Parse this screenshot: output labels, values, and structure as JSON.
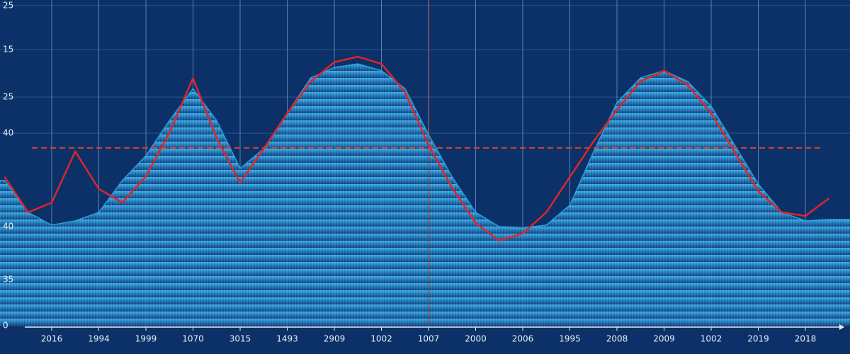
{
  "chart_data": {
    "type": "area-line",
    "categories": [
      null,
      null,
      "2016",
      null,
      "1994",
      null,
      "1999",
      null,
      "1070",
      null,
      "3015",
      null,
      "1493",
      null,
      "2909",
      null,
      "1002",
      null,
      "1007",
      null,
      "2000",
      null,
      "2006",
      null,
      "1995",
      null,
      "2008",
      null,
      "2009",
      null,
      "1002",
      null,
      "2019",
      null,
      "2018",
      null
    ],
    "series": [
      {
        "color": "#2fa6e0",
        "values": [
          44.6,
          34.8,
          30.9,
          32.2,
          34.8,
          44.6,
          52.2,
          63,
          72.8,
          63,
          48.3,
          54.3,
          65.2,
          76.1,
          79.3,
          80.4,
          78.3,
          72.8,
          58.7,
          45.7,
          34.8,
          30.4,
          30,
          30.9,
          37,
          53.3,
          68.5,
          76.1,
          78.3,
          75,
          67.4,
          55.4,
          43.5,
          34.8,
          32.2,
          32.6
        ]
      },
      {
        "color": "#e0242a",
        "values": [
          45.7,
          34.8,
          37.8,
          53.5,
          42,
          37.8,
          45.9,
          59.3,
          76,
          57.6,
          43.9,
          54.3,
          65.2,
          75,
          80.9,
          82.6,
          80.4,
          71.7,
          55.4,
          42.4,
          31.5,
          26.1,
          28.3,
          34.8,
          45.7,
          56.5,
          66.3,
          75,
          78.3,
          73.9,
          65.2,
          53.3,
          41.3,
          34.8,
          33.7,
          39.1
        ]
      }
    ],
    "reference_value": 54.6,
    "reference_index": 18,
    "ylim": [
      0,
      100
    ],
    "yticks": [
      {
        "value": 98.3,
        "label": "25"
      },
      {
        "value": 84.8,
        "label": "15"
      },
      {
        "value": 70.2,
        "label": "25"
      },
      {
        "value": 59.1,
        "label": "40"
      },
      {
        "value": 30.4,
        "label": "40"
      },
      {
        "value": 14.1,
        "label": "35"
      },
      0
    ],
    "grid": true
  }
}
